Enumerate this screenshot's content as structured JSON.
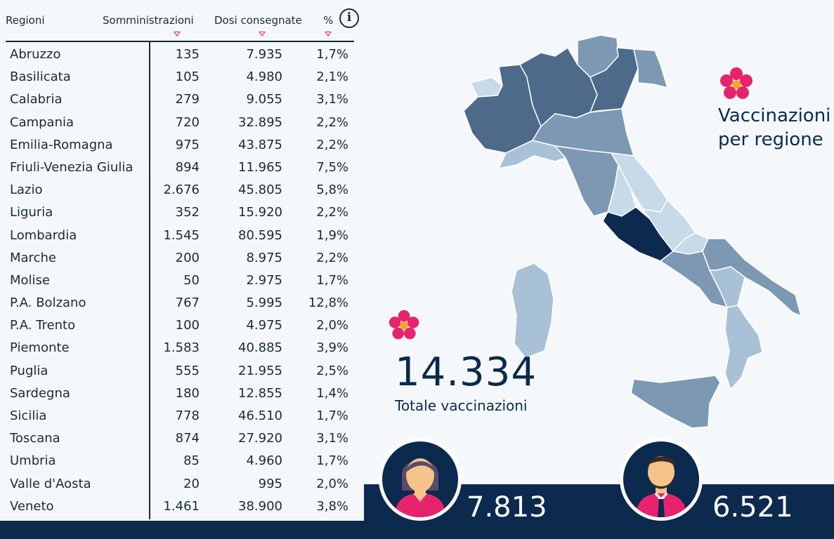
{
  "table": {
    "headers": {
      "region": "Regioni",
      "administrations": "Somministrazioni",
      "delivered": "Dosi consegnate",
      "percent": "%"
    },
    "info_symbol": "i",
    "rows": [
      {
        "name": "Abruzzo",
        "admin": "135",
        "delivered": "7.935",
        "pct": "1,7%"
      },
      {
        "name": "Basilicata",
        "admin": "105",
        "delivered": "4.980",
        "pct": "2,1%"
      },
      {
        "name": "Calabria",
        "admin": "279",
        "delivered": "9.055",
        "pct": "3,1%"
      },
      {
        "name": "Campania",
        "admin": "720",
        "delivered": "32.895",
        "pct": "2,2%"
      },
      {
        "name": "Emilia-Romagna",
        "admin": "975",
        "delivered": "43.875",
        "pct": "2,2%"
      },
      {
        "name": "Friuli-Venezia Giulia",
        "admin": "894",
        "delivered": "11.965",
        "pct": "7,5%"
      },
      {
        "name": "Lazio",
        "admin": "2.676",
        "delivered": "45.805",
        "pct": "5,8%"
      },
      {
        "name": "Liguria",
        "admin": "352",
        "delivered": "15.920",
        "pct": "2,2%"
      },
      {
        "name": "Lombardia",
        "admin": "1.545",
        "delivered": "80.595",
        "pct": "1,9%"
      },
      {
        "name": "Marche",
        "admin": "200",
        "delivered": "8.975",
        "pct": "2,2%"
      },
      {
        "name": "Molise",
        "admin": "50",
        "delivered": "2.975",
        "pct": "1,7%"
      },
      {
        "name": "P.A. Bolzano",
        "admin": "767",
        "delivered": "5.995",
        "pct": "12,8%"
      },
      {
        "name": "P.A. Trento",
        "admin": "100",
        "delivered": "4.975",
        "pct": "2,0%"
      },
      {
        "name": "Piemonte",
        "admin": "1.583",
        "delivered": "40.885",
        "pct": "3,9%"
      },
      {
        "name": "Puglia",
        "admin": "555",
        "delivered": "21.955",
        "pct": "2,5%"
      },
      {
        "name": "Sardegna",
        "admin": "180",
        "delivered": "12.855",
        "pct": "1,4%"
      },
      {
        "name": "Sicilia",
        "admin": "778",
        "delivered": "46.510",
        "pct": "1,7%"
      },
      {
        "name": "Toscana",
        "admin": "874",
        "delivered": "27.920",
        "pct": "3,1%"
      },
      {
        "name": "Umbria",
        "admin": "85",
        "delivered": "4.960",
        "pct": "1,7%"
      },
      {
        "name": "Valle d'Aosta",
        "admin": "20",
        "delivered": "995",
        "pct": "2,0%"
      },
      {
        "name": "Veneto",
        "admin": "1.461",
        "delivered": "38.900",
        "pct": "3,8%"
      }
    ]
  },
  "map": {
    "title_line1": "Vaccinazioni",
    "title_line2": "per regione",
    "colors": {
      "dark": "#0b2a4d",
      "mid_dark": "#4d6a8a",
      "mid": "#7d98b3",
      "light": "#a9c1d6",
      "lightest": "#c6dae8"
    },
    "flower_icon": "primula-flower-icon"
  },
  "totals": {
    "value": "14.334",
    "label": "Totale vaccinazioni"
  },
  "gender": {
    "women": "7.813",
    "men": "6.521"
  },
  "colors": {
    "navy": "#0b2a4d",
    "accent_pink": "#e8236e",
    "background": "#f4f8fb"
  }
}
